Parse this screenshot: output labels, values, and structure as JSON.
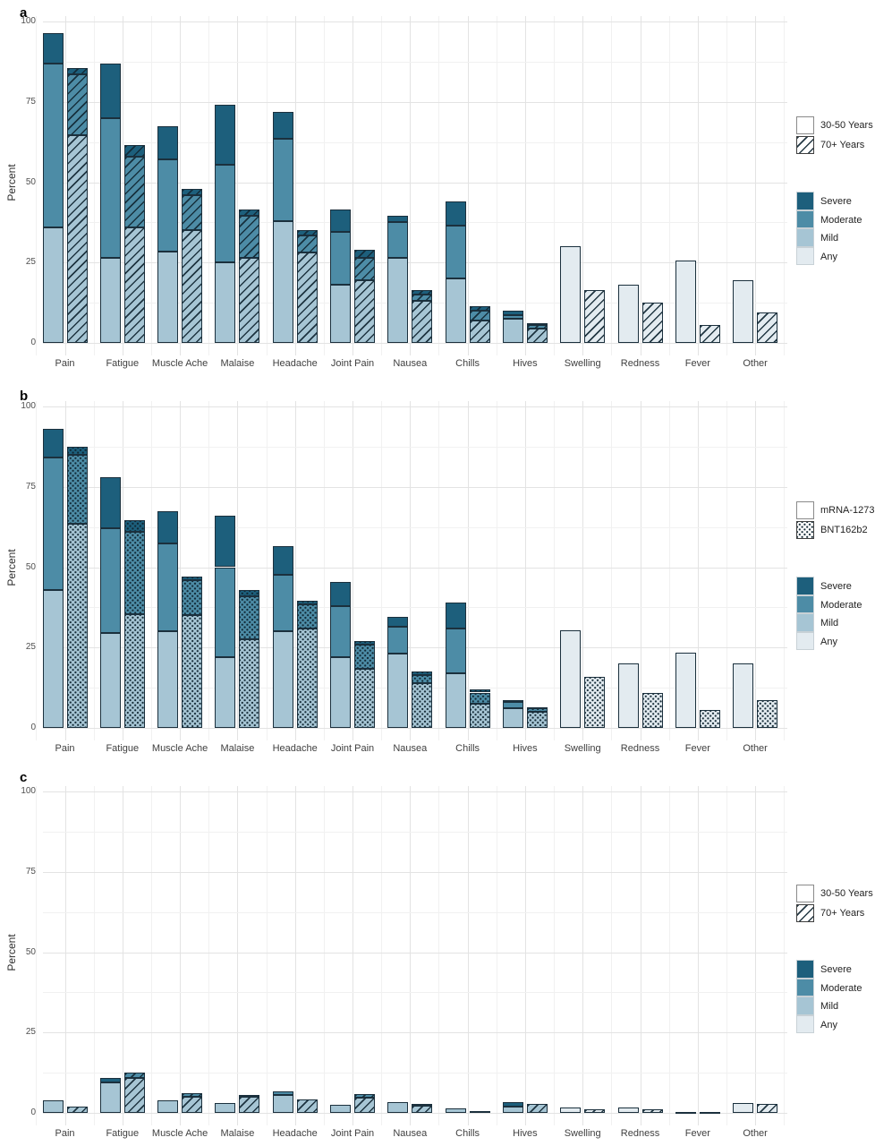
{
  "axis": {
    "ylabel": "Percent",
    "yticks": [
      0,
      25,
      50,
      75,
      100
    ],
    "ylim": [
      0,
      100
    ]
  },
  "severity_legend": {
    "items": [
      {
        "label": "Severe",
        "color": "#1d5f7c"
      },
      {
        "label": "Moderate",
        "color": "#4d8ca6"
      },
      {
        "label": "Mild",
        "color": "#a6c5d4"
      },
      {
        "label": "Any",
        "color": "#e3ebf0"
      }
    ]
  },
  "colors": {
    "severe": "#1d5f7c",
    "moderate": "#4d8ca6",
    "mild": "#a6c5d4",
    "any": "#e3ebf0",
    "bar_border": "#1b303d"
  },
  "chart_data": [
    {
      "type": "bar",
      "panel_label": "a",
      "ylabel": "Percent",
      "ylim": [
        0,
        100
      ],
      "yticks": [
        0,
        25,
        50,
        75,
        100
      ],
      "stacked": true,
      "stack_levels": [
        "Any",
        "Mild",
        "Moderate",
        "Severe"
      ],
      "legend_position": "right",
      "grid": true,
      "categories": [
        "Pain",
        "Fatigue",
        "Muscle Ache",
        "Malaise",
        "Headache",
        "Joint Pain",
        "Nausea",
        "Chills",
        "Hives",
        "Swelling",
        "Redness",
        "Fever",
        "Other"
      ],
      "series": [
        {
          "name": "30-50 Years",
          "pattern": "plain",
          "values": [
            {
              "mild": 36,
              "moderate": 87,
              "severe": 96.5
            },
            {
              "mild": 26.5,
              "moderate": 70,
              "severe": 87
            },
            {
              "mild": 28.5,
              "moderate": 57,
              "severe": 67.5
            },
            {
              "mild": 25,
              "moderate": 55.5,
              "severe": 74
            },
            {
              "mild": 38,
              "moderate": 63.5,
              "severe": 72
            },
            {
              "mild": 18,
              "moderate": 34.5,
              "severe": 41.5
            },
            {
              "mild": 26.5,
              "moderate": 37.5,
              "severe": 39.5
            },
            {
              "mild": 20,
              "moderate": 36.5,
              "severe": 44
            },
            {
              "mild": 7.5,
              "moderate": 8.5,
              "severe": 10
            },
            {
              "any": 30
            },
            {
              "any": 18
            },
            {
              "any": 25.5
            },
            {
              "any": 19.5
            }
          ]
        },
        {
          "name": "70+ Years",
          "pattern": "hatch",
          "values": [
            {
              "mild": 64.5,
              "moderate": 83.5,
              "severe": 85.5
            },
            {
              "mild": 36,
              "moderate": 58,
              "severe": 61.5
            },
            {
              "mild": 35,
              "moderate": 46,
              "severe": 48
            },
            {
              "mild": 26.5,
              "moderate": 39.5,
              "severe": 41.5
            },
            {
              "mild": 28,
              "moderate": 33.5,
              "severe": 35
            },
            {
              "mild": 19.5,
              "moderate": 26.5,
              "severe": 29
            },
            {
              "mild": 13,
              "moderate": 15,
              "severe": 16.5
            },
            {
              "mild": 7,
              "moderate": 10,
              "severe": 11.5
            },
            {
              "mild": 4.5,
              "moderate": 5.5,
              "severe": 6
            },
            {
              "any": 16.5
            },
            {
              "any": 12.5
            },
            {
              "any": 5.5
            },
            {
              "any": 9.5
            }
          ]
        }
      ]
    },
    {
      "type": "bar",
      "panel_label": "b",
      "ylabel": "Percent",
      "ylim": [
        0,
        100
      ],
      "yticks": [
        0,
        25,
        50,
        75,
        100
      ],
      "stacked": true,
      "stack_levels": [
        "Any",
        "Mild",
        "Moderate",
        "Severe"
      ],
      "legend_position": "right",
      "grid": true,
      "categories": [
        "Pain",
        "Fatigue",
        "Muscle Ache",
        "Malaise",
        "Headache",
        "Joint Pain",
        "Nausea",
        "Chills",
        "Hives",
        "Swelling",
        "Redness",
        "Fever",
        "Other"
      ],
      "series": [
        {
          "name": "mRNA-1273",
          "pattern": "plain",
          "values": [
            {
              "mild": 43,
              "moderate": 84,
              "severe": 93
            },
            {
              "mild": 29.5,
              "moderate": 62,
              "severe": 78
            },
            {
              "mild": 30,
              "moderate": 57.5,
              "severe": 67.5
            },
            {
              "mild": 22,
              "moderate": 50,
              "severe": 66
            },
            {
              "mild": 30,
              "moderate": 47.5,
              "severe": 56.5
            },
            {
              "mild": 22,
              "moderate": 38,
              "severe": 45.5
            },
            {
              "mild": 23,
              "moderate": 31.5,
              "severe": 34.5
            },
            {
              "mild": 17,
              "moderate": 31,
              "severe": 39
            },
            {
              "mild": 6,
              "moderate": 8,
              "severe": 8.5
            },
            {
              "any": 30.5
            },
            {
              "any": 20
            },
            {
              "any": 23.5
            },
            {
              "any": 20
            }
          ]
        },
        {
          "name": "BNT162b2",
          "pattern": "dots",
          "values": [
            {
              "mild": 63.5,
              "moderate": 85,
              "severe": 87.5
            },
            {
              "mild": 35.5,
              "moderate": 61,
              "severe": 64.5
            },
            {
              "mild": 35,
              "moderate": 46,
              "severe": 47
            },
            {
              "mild": 27.5,
              "moderate": 41,
              "severe": 43
            },
            {
              "mild": 31,
              "moderate": 38.5,
              "severe": 39.5
            },
            {
              "mild": 18.5,
              "moderate": 26,
              "severe": 27
            },
            {
              "mild": 14,
              "moderate": 16.5,
              "severe": 17.5
            },
            {
              "mild": 7.5,
              "moderate": 11,
              "severe": 12
            },
            {
              "mild": 5,
              "moderate": 6,
              "severe": 6.5
            },
            {
              "any": 16
            },
            {
              "any": 11
            },
            {
              "any": 5.5
            },
            {
              "any": 8.5
            }
          ]
        }
      ]
    },
    {
      "type": "bar",
      "panel_label": "c",
      "ylabel": "Percent",
      "ylim": [
        0,
        100
      ],
      "yticks": [
        0,
        25,
        50,
        75,
        100
      ],
      "stacked": true,
      "stack_levels": [
        "Any",
        "Mild",
        "Moderate",
        "Severe"
      ],
      "legend_position": "right",
      "grid": true,
      "categories": [
        "Pain",
        "Fatigue",
        "Muscle Ache",
        "Malaise",
        "Headache",
        "Joint Pain",
        "Nausea",
        "Chills",
        "Hives",
        "Swelling",
        "Redness",
        "Fever",
        "Other"
      ],
      "series": [
        {
          "name": "30-50 Years",
          "pattern": "plain",
          "values": [
            {
              "mild": 4
            },
            {
              "mild": 9.5,
              "moderate": 9.5,
              "severe": 10.8
            },
            {
              "mild": 4
            },
            {
              "mild": 3
            },
            {
              "mild": 5.5,
              "moderate": 6.8
            },
            {
              "mild": 2.5
            },
            {
              "mild": 3.3
            },
            {
              "mild": 1.4
            },
            {
              "mild": 2,
              "moderate": 2,
              "severe": 3.3
            },
            {
              "any": 1.7
            },
            {
              "any": 1.7
            },
            {
              "any": 0.4
            },
            {
              "any": 3.1
            }
          ]
        },
        {
          "name": "70+ Years",
          "pattern": "hatch",
          "values": [
            {
              "mild": 2
            },
            {
              "mild": 11,
              "moderate": 12.5
            },
            {
              "mild": 5,
              "moderate": 6
            },
            {
              "mild": 5,
              "moderate": 5.6
            },
            {
              "mild": 4.2
            },
            {
              "mild": 4.7,
              "moderate": 5.9
            },
            {
              "mild": 2.3,
              "moderate": 2.8
            },
            {
              "mild": 0.6
            },
            {
              "mild": 2.8
            },
            {
              "any": 1.1
            },
            {
              "any": 1.1
            },
            {
              "any": 0.4
            },
            {
              "any": 2.9
            }
          ]
        }
      ]
    }
  ]
}
